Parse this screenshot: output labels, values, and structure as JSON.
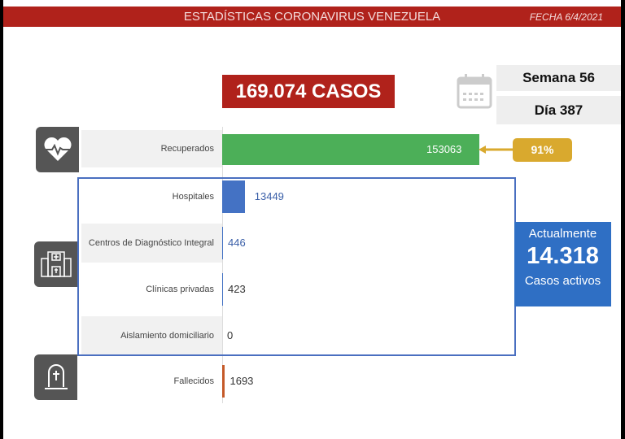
{
  "header": {
    "title": "ESTADÍSTICAS CORONAVIRUS VENEZUELA",
    "date": "FECHA 6/4/2021"
  },
  "total_cases": "169.074 CASOS",
  "calendar": {
    "icon": "calendar-icon",
    "week": "Semana 56",
    "day": "Día 387"
  },
  "recovered_pct": "91%",
  "active": {
    "top": "Actualmente",
    "value": "14.318",
    "bottom": "Casos activos"
  },
  "colors": {
    "header": "#b0221b",
    "recovered": "#4caf58",
    "hospital": "#4472c4",
    "deaths": "#c55a29",
    "badge": "#d9a92e",
    "active": "#2f6fc4"
  },
  "chart_data": {
    "type": "bar",
    "orientation": "horizontal",
    "categories": [
      "Recuperados",
      "Hospitales",
      "Centros de Diagnóstico Integral",
      "Clínicas privadas",
      "Aislamiento domiciliario",
      "Fallecidos"
    ],
    "values": [
      153063,
      13449,
      446,
      423,
      0,
      1693
    ],
    "labels": [
      "153063",
      "13449",
      "446",
      "423",
      "0",
      "1693"
    ]
  }
}
